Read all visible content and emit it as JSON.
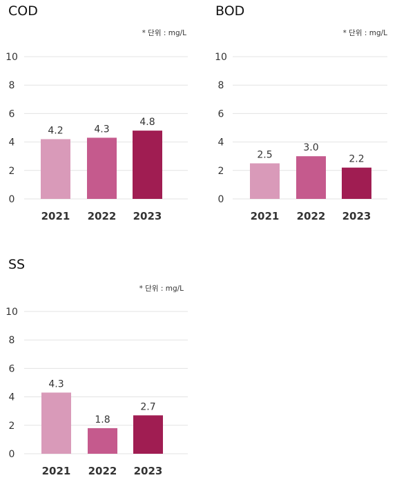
{
  "unit_note": "* 단위 : mg/L",
  "colors": [
    "#d99ab9",
    "#c55a8d",
    "#a01d52"
  ],
  "chart_data": [
    {
      "type": "bar",
      "title": "COD",
      "categories": [
        "2021",
        "2022",
        "2023"
      ],
      "values": [
        4.2,
        4.3,
        4.8
      ],
      "ylim": [
        0,
        10
      ],
      "yticks": [
        0,
        2,
        4,
        6,
        8,
        10
      ],
      "grid": true
    },
    {
      "type": "bar",
      "title": "BOD",
      "categories": [
        "2021",
        "2022",
        "2023"
      ],
      "values": [
        2.5,
        3.0,
        2.2
      ],
      "ylim": [
        0,
        10
      ],
      "yticks": [
        0,
        2,
        4,
        6,
        8,
        10
      ],
      "grid": true
    },
    {
      "type": "bar",
      "title": "SS",
      "categories": [
        "2021",
        "2022",
        "2023"
      ],
      "values": [
        4.3,
        1.8,
        2.7
      ],
      "ylim": [
        0,
        10
      ],
      "yticks": [
        0,
        2,
        4,
        6,
        8,
        10
      ],
      "grid": true
    }
  ]
}
